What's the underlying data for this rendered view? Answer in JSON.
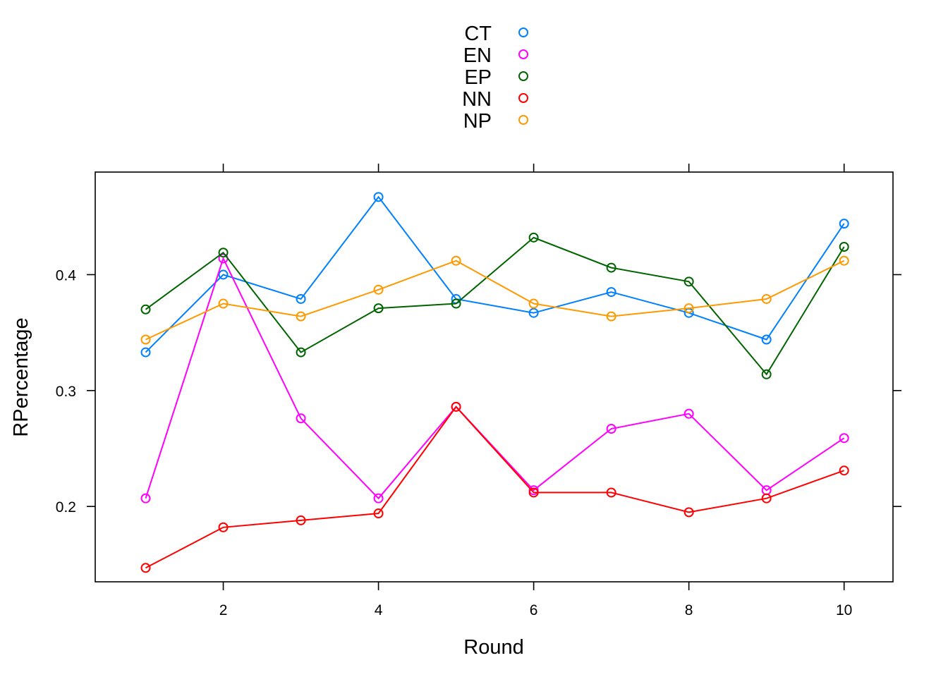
{
  "chart_data": {
    "type": "line",
    "title": "",
    "xlabel": "Round",
    "ylabel": "RPercentage",
    "xlim": [
      0.35,
      10.63
    ],
    "ylim": [
      0.135,
      0.4885
    ],
    "x_ticks": [
      2,
      4,
      6,
      8,
      10
    ],
    "x_tick_labels": [
      "2",
      "4",
      "6",
      "8",
      "10"
    ],
    "y_ticks": [
      0.2,
      0.3,
      0.4
    ],
    "y_tick_labels": [
      "0.2",
      "0.3",
      "0.4"
    ],
    "grid": false,
    "legend_position": "top",
    "x": [
      1,
      2,
      3,
      4,
      5,
      6,
      7,
      8,
      9,
      10
    ],
    "series": [
      {
        "name": "CT",
        "color": "#0080ff",
        "values": [
          0.333,
          0.4,
          0.379,
          0.467,
          0.379,
          0.367,
          0.385,
          0.367,
          0.344,
          0.444
        ]
      },
      {
        "name": "EN",
        "color": "#ff00ff",
        "values": [
          0.207,
          0.414,
          0.276,
          0.207,
          0.286,
          0.214,
          0.267,
          0.28,
          0.214,
          0.259
        ]
      },
      {
        "name": "EP",
        "color": "#006400",
        "values": [
          0.37,
          0.419,
          0.333,
          0.371,
          0.375,
          0.432,
          0.406,
          0.394,
          0.314,
          0.424
        ]
      },
      {
        "name": "NN",
        "color": "#ff0000",
        "values": [
          0.147,
          0.182,
          0.188,
          0.194,
          0.286,
          0.212,
          0.212,
          0.195,
          0.207,
          0.231
        ]
      },
      {
        "name": "NP",
        "color": "#ff9900",
        "values": [
          0.344,
          0.375,
          0.364,
          0.387,
          0.412,
          0.375,
          0.364,
          0.371,
          0.379,
          0.412
        ]
      }
    ]
  }
}
